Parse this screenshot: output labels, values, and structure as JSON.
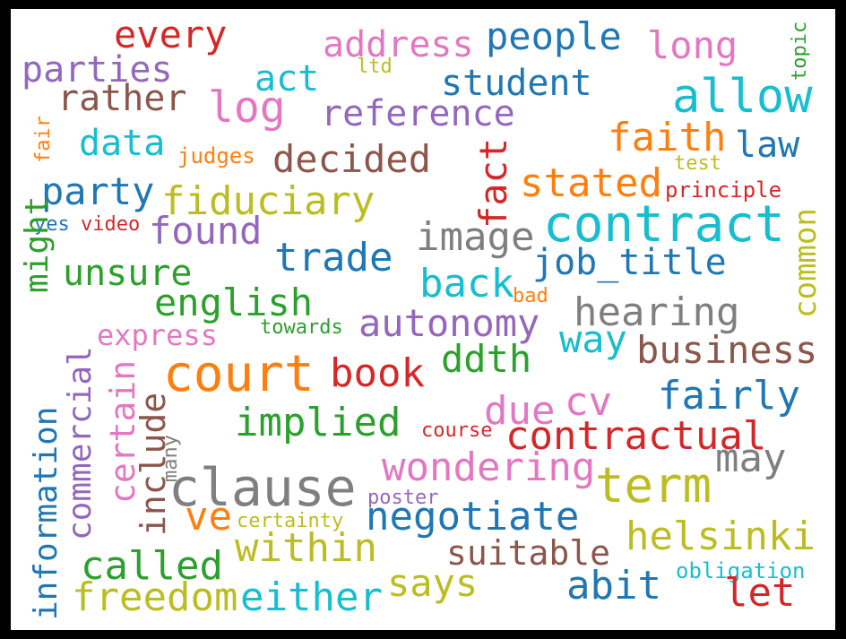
{
  "palette": {
    "blue": "#1f77b4",
    "orange": "#ff7f0e",
    "green": "#2ca02c",
    "red": "#d62728",
    "purple": "#9467bd",
    "brown": "#8c564b",
    "pink": "#e377c2",
    "gray": "#7f7f7f",
    "olive": "#bcbd22",
    "cyan": "#17becf"
  },
  "words": [
    {
      "id": "every",
      "text": "every",
      "color": "red"
    },
    {
      "id": "address",
      "text": "address",
      "color": "pink"
    },
    {
      "id": "people",
      "text": "people",
      "color": "blue"
    },
    {
      "id": "long",
      "text": "long",
      "color": "pink"
    },
    {
      "id": "topic",
      "text": "topic",
      "color": "green"
    },
    {
      "id": "parties",
      "text": "parties",
      "color": "purple"
    },
    {
      "id": "act",
      "text": "act",
      "color": "cyan"
    },
    {
      "id": "ltd",
      "text": "ltd",
      "color": "olive"
    },
    {
      "id": "student",
      "text": "student",
      "color": "blue"
    },
    {
      "id": "allow",
      "text": "allow",
      "color": "cyan"
    },
    {
      "id": "rather",
      "text": "rather",
      "color": "brown"
    },
    {
      "id": "log",
      "text": "log",
      "color": "pink"
    },
    {
      "id": "reference",
      "text": "reference",
      "color": "purple"
    },
    {
      "id": "fair",
      "text": "fair",
      "color": "orange"
    },
    {
      "id": "data",
      "text": "data",
      "color": "cyan"
    },
    {
      "id": "fact",
      "text": "fact",
      "color": "red"
    },
    {
      "id": "faith",
      "text": "faith",
      "color": "orange"
    },
    {
      "id": "law",
      "text": "law",
      "color": "blue"
    },
    {
      "id": "judges",
      "text": "judges",
      "color": "orange"
    },
    {
      "id": "decided",
      "text": "decided",
      "color": "brown"
    },
    {
      "id": "test",
      "text": "test",
      "color": "olive"
    },
    {
      "id": "party",
      "text": "party",
      "color": "blue"
    },
    {
      "id": "fiduciary",
      "text": "fiduciary",
      "color": "olive"
    },
    {
      "id": "stated",
      "text": "stated",
      "color": "orange"
    },
    {
      "id": "principle",
      "text": "principle",
      "color": "red"
    },
    {
      "id": "common",
      "text": "common",
      "color": "olive"
    },
    {
      "id": "yes",
      "text": "yes",
      "color": "blue"
    },
    {
      "id": "video",
      "text": "video",
      "color": "red"
    },
    {
      "id": "found",
      "text": "found",
      "color": "purple"
    },
    {
      "id": "contract",
      "text": "contract",
      "color": "cyan"
    },
    {
      "id": "image",
      "text": "image",
      "color": "gray"
    },
    {
      "id": "might",
      "text": "might",
      "color": "green"
    },
    {
      "id": "trade",
      "text": "trade",
      "color": "blue"
    },
    {
      "id": "job_title",
      "text": "job_title",
      "color": "blue"
    },
    {
      "id": "unsure",
      "text": "unsure",
      "color": "green"
    },
    {
      "id": "back",
      "text": "back",
      "color": "cyan"
    },
    {
      "id": "bad",
      "text": "bad",
      "color": "orange"
    },
    {
      "id": "english",
      "text": "english",
      "color": "green"
    },
    {
      "id": "hearing",
      "text": "hearing",
      "color": "gray"
    },
    {
      "id": "commercial",
      "text": "commercial",
      "color": "purple"
    },
    {
      "id": "autonomy",
      "text": "autonomy",
      "color": "purple"
    },
    {
      "id": "towards",
      "text": "towards",
      "color": "green"
    },
    {
      "id": "express",
      "text": "express",
      "color": "pink"
    },
    {
      "id": "way",
      "text": "way",
      "color": "cyan"
    },
    {
      "id": "business",
      "text": "business",
      "color": "brown"
    },
    {
      "id": "information",
      "text": "information",
      "color": "blue"
    },
    {
      "id": "court",
      "text": "court",
      "color": "orange"
    },
    {
      "id": "book",
      "text": "book",
      "color": "red"
    },
    {
      "id": "ddth",
      "text": "ddth",
      "color": "green"
    },
    {
      "id": "certain",
      "text": "certain",
      "color": "pink"
    },
    {
      "id": "include",
      "text": "include",
      "color": "brown"
    },
    {
      "id": "fairly",
      "text": "fairly",
      "color": "blue"
    },
    {
      "id": "cv",
      "text": "cv",
      "color": "pink"
    },
    {
      "id": "due",
      "text": "due",
      "color": "pink"
    },
    {
      "id": "implied",
      "text": "implied",
      "color": "green"
    },
    {
      "id": "course",
      "text": "course",
      "color": "red"
    },
    {
      "id": "contractual",
      "text": "contractual",
      "color": "red"
    },
    {
      "id": "many",
      "text": "many",
      "color": "gray"
    },
    {
      "id": "wondering",
      "text": "wondering",
      "color": "pink"
    },
    {
      "id": "may",
      "text": "may",
      "color": "gray"
    },
    {
      "id": "clause",
      "text": "clause",
      "color": "gray"
    },
    {
      "id": "term",
      "text": "term",
      "color": "olive"
    },
    {
      "id": "poster",
      "text": "poster",
      "color": "purple"
    },
    {
      "id": "ve",
      "text": "ve",
      "color": "orange"
    },
    {
      "id": "certainty",
      "text": "certainty",
      "color": "olive"
    },
    {
      "id": "negotiate",
      "text": "negotiate",
      "color": "blue"
    },
    {
      "id": "within",
      "text": "within",
      "color": "olive"
    },
    {
      "id": "suitable",
      "text": "suitable",
      "color": "brown"
    },
    {
      "id": "helsinki",
      "text": "helsinki",
      "color": "olive"
    },
    {
      "id": "called",
      "text": "called",
      "color": "green"
    },
    {
      "id": "obligation",
      "text": "obligation",
      "color": "cyan"
    },
    {
      "id": "says",
      "text": "says",
      "color": "olive"
    },
    {
      "id": "abit",
      "text": "abit",
      "color": "blue"
    },
    {
      "id": "freedom",
      "text": "freedom",
      "color": "olive"
    },
    {
      "id": "either",
      "text": "either",
      "color": "cyan"
    },
    {
      "id": "let",
      "text": "let",
      "color": "red"
    }
  ]
}
